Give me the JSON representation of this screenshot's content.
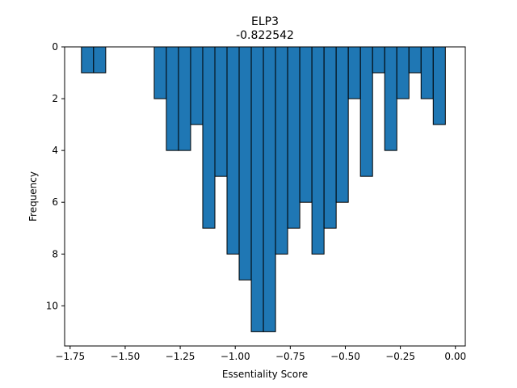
{
  "chart_data": {
    "type": "bar",
    "title": "ELP3",
    "subtitle": "-0.822542",
    "xlabel": "Essentiality Score",
    "ylabel": "Frequency",
    "bar_color": "#1f77b4",
    "edge_color": "#000000",
    "y_inverted": true,
    "grid": false,
    "xlim": [
      -1.775,
      0.045
    ],
    "ylim": [
      0,
      11.55
    ],
    "bin_width": 0.0551,
    "xticks": [
      {
        "value": -1.75,
        "label": "−1.75"
      },
      {
        "value": -1.5,
        "label": "−1.50"
      },
      {
        "value": -1.25,
        "label": "−1.25"
      },
      {
        "value": -1.0,
        "label": "−1.00"
      },
      {
        "value": -0.75,
        "label": "−0.75"
      },
      {
        "value": -0.5,
        "label": "−0.50"
      },
      {
        "value": -0.25,
        "label": "−0.25"
      },
      {
        "value": 0.0,
        "label": "0.00"
      }
    ],
    "yticks": [
      {
        "value": 0,
        "label": "0"
      },
      {
        "value": 2,
        "label": "2"
      },
      {
        "value": 4,
        "label": "4"
      },
      {
        "value": 6,
        "label": "6"
      },
      {
        "value": 8,
        "label": "8"
      },
      {
        "value": 10,
        "label": "10"
      }
    ],
    "bins": [
      {
        "x0": -1.6986,
        "x1": -1.6435,
        "count": 1
      },
      {
        "x0": -1.6435,
        "x1": -1.5884,
        "count": 1
      },
      {
        "x0": -1.368,
        "x1": -1.3129,
        "count": 2
      },
      {
        "x0": -1.3129,
        "x1": -1.2578,
        "count": 4
      },
      {
        "x0": -1.2578,
        "x1": -1.2027,
        "count": 4
      },
      {
        "x0": -1.2027,
        "x1": -1.1476,
        "count": 3
      },
      {
        "x0": -1.1476,
        "x1": -1.0925,
        "count": 7
      },
      {
        "x0": -1.0925,
        "x1": -1.0374,
        "count": 5
      },
      {
        "x0": -1.0374,
        "x1": -0.9823,
        "count": 8
      },
      {
        "x0": -0.9823,
        "x1": -0.9272,
        "count": 9
      },
      {
        "x0": -0.9272,
        "x1": -0.8721,
        "count": 11
      },
      {
        "x0": -0.8721,
        "x1": -0.817,
        "count": 11
      },
      {
        "x0": -0.817,
        "x1": -0.7619,
        "count": 8
      },
      {
        "x0": -0.7619,
        "x1": -0.7068,
        "count": 7
      },
      {
        "x0": -0.7068,
        "x1": -0.6517,
        "count": 6
      },
      {
        "x0": -0.6517,
        "x1": -0.5966,
        "count": 8
      },
      {
        "x0": -0.5966,
        "x1": -0.5415,
        "count": 7
      },
      {
        "x0": -0.5415,
        "x1": -0.4864,
        "count": 6
      },
      {
        "x0": -0.4864,
        "x1": -0.4313,
        "count": 2
      },
      {
        "x0": -0.4313,
        "x1": -0.3762,
        "count": 5
      },
      {
        "x0": -0.3762,
        "x1": -0.3211,
        "count": 1
      },
      {
        "x0": -0.3211,
        "x1": -0.266,
        "count": 4
      },
      {
        "x0": -0.266,
        "x1": -0.2109,
        "count": 2
      },
      {
        "x0": -0.2109,
        "x1": -0.1558,
        "count": 1
      },
      {
        "x0": -0.1558,
        "x1": -0.1007,
        "count": 2
      },
      {
        "x0": -0.1007,
        "x1": -0.0456,
        "count": 3
      }
    ]
  }
}
